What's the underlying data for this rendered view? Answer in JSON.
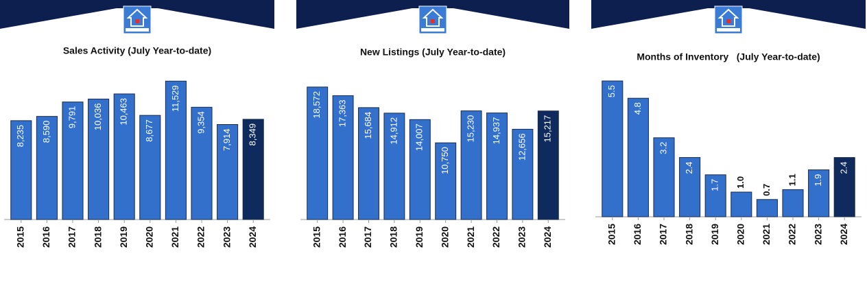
{
  "chart_data": [
    {
      "type": "bar",
      "title": "Sales Activity (July Year-to-date)",
      "categories": [
        "2015",
        "2016",
        "2017",
        "2018",
        "2019",
        "2020",
        "2021",
        "2022",
        "2023",
        "2024"
      ],
      "values": [
        8235,
        8590,
        9791,
        10036,
        10463,
        8677,
        11529,
        9354,
        7914,
        8349
      ],
      "value_labels": [
        "8,235",
        "8,590",
        "9,791",
        "10,036",
        "10,463",
        "8,677",
        "11,529",
        "9,354",
        "7,914",
        "8,349"
      ],
      "colors": [
        "#3370cc",
        "#3370cc",
        "#3370cc",
        "#3370cc",
        "#3370cc",
        "#3370cc",
        "#3370cc",
        "#3370cc",
        "#3370cc",
        "#0f2a5c"
      ],
      "ylim": [
        0,
        12000
      ]
    },
    {
      "type": "bar",
      "title": "New Listings (July Year-to-date)",
      "categories": [
        "2015",
        "2016",
        "2017",
        "2018",
        "2019",
        "2020",
        "2021",
        "2022",
        "2023",
        "2024"
      ],
      "values": [
        18572,
        17363,
        15684,
        14912,
        14007,
        10750,
        15230,
        14937,
        12656,
        15217
      ],
      "value_labels": [
        "18,572",
        "17,363",
        "15,684",
        "14,912",
        "14,007",
        "10,750",
        "15,230",
        "14,937",
        "12,656",
        "15,217"
      ],
      "colors": [
        "#3370cc",
        "#3370cc",
        "#3370cc",
        "#3370cc",
        "#3370cc",
        "#3370cc",
        "#3370cc",
        "#3370cc",
        "#3370cc",
        "#0f2a5c"
      ],
      "ylim": [
        0,
        20000
      ]
    },
    {
      "type": "bar",
      "title": "Months of Inventory   (July Year-to-date)",
      "categories": [
        "2015",
        "2016",
        "2017",
        "2018",
        "2019",
        "2020",
        "2021",
        "2022",
        "2023",
        "2024"
      ],
      "values": [
        5.5,
        4.8,
        3.2,
        2.4,
        1.7,
        1.0,
        0.7,
        1.1,
        1.9,
        2.4
      ],
      "value_labels": [
        "5.5",
        "4.8",
        "3.2",
        "2.4",
        "1.7",
        "1.0",
        "0.7",
        "1.1",
        "1.9",
        "2.4"
      ],
      "colors": [
        "#3370cc",
        "#3370cc",
        "#3370cc",
        "#3370cc",
        "#3370cc",
        "#3370cc",
        "#3370cc",
        "#3370cc",
        "#3370cc",
        "#0f2a5c"
      ],
      "ylim": [
        0,
        6
      ]
    }
  ]
}
